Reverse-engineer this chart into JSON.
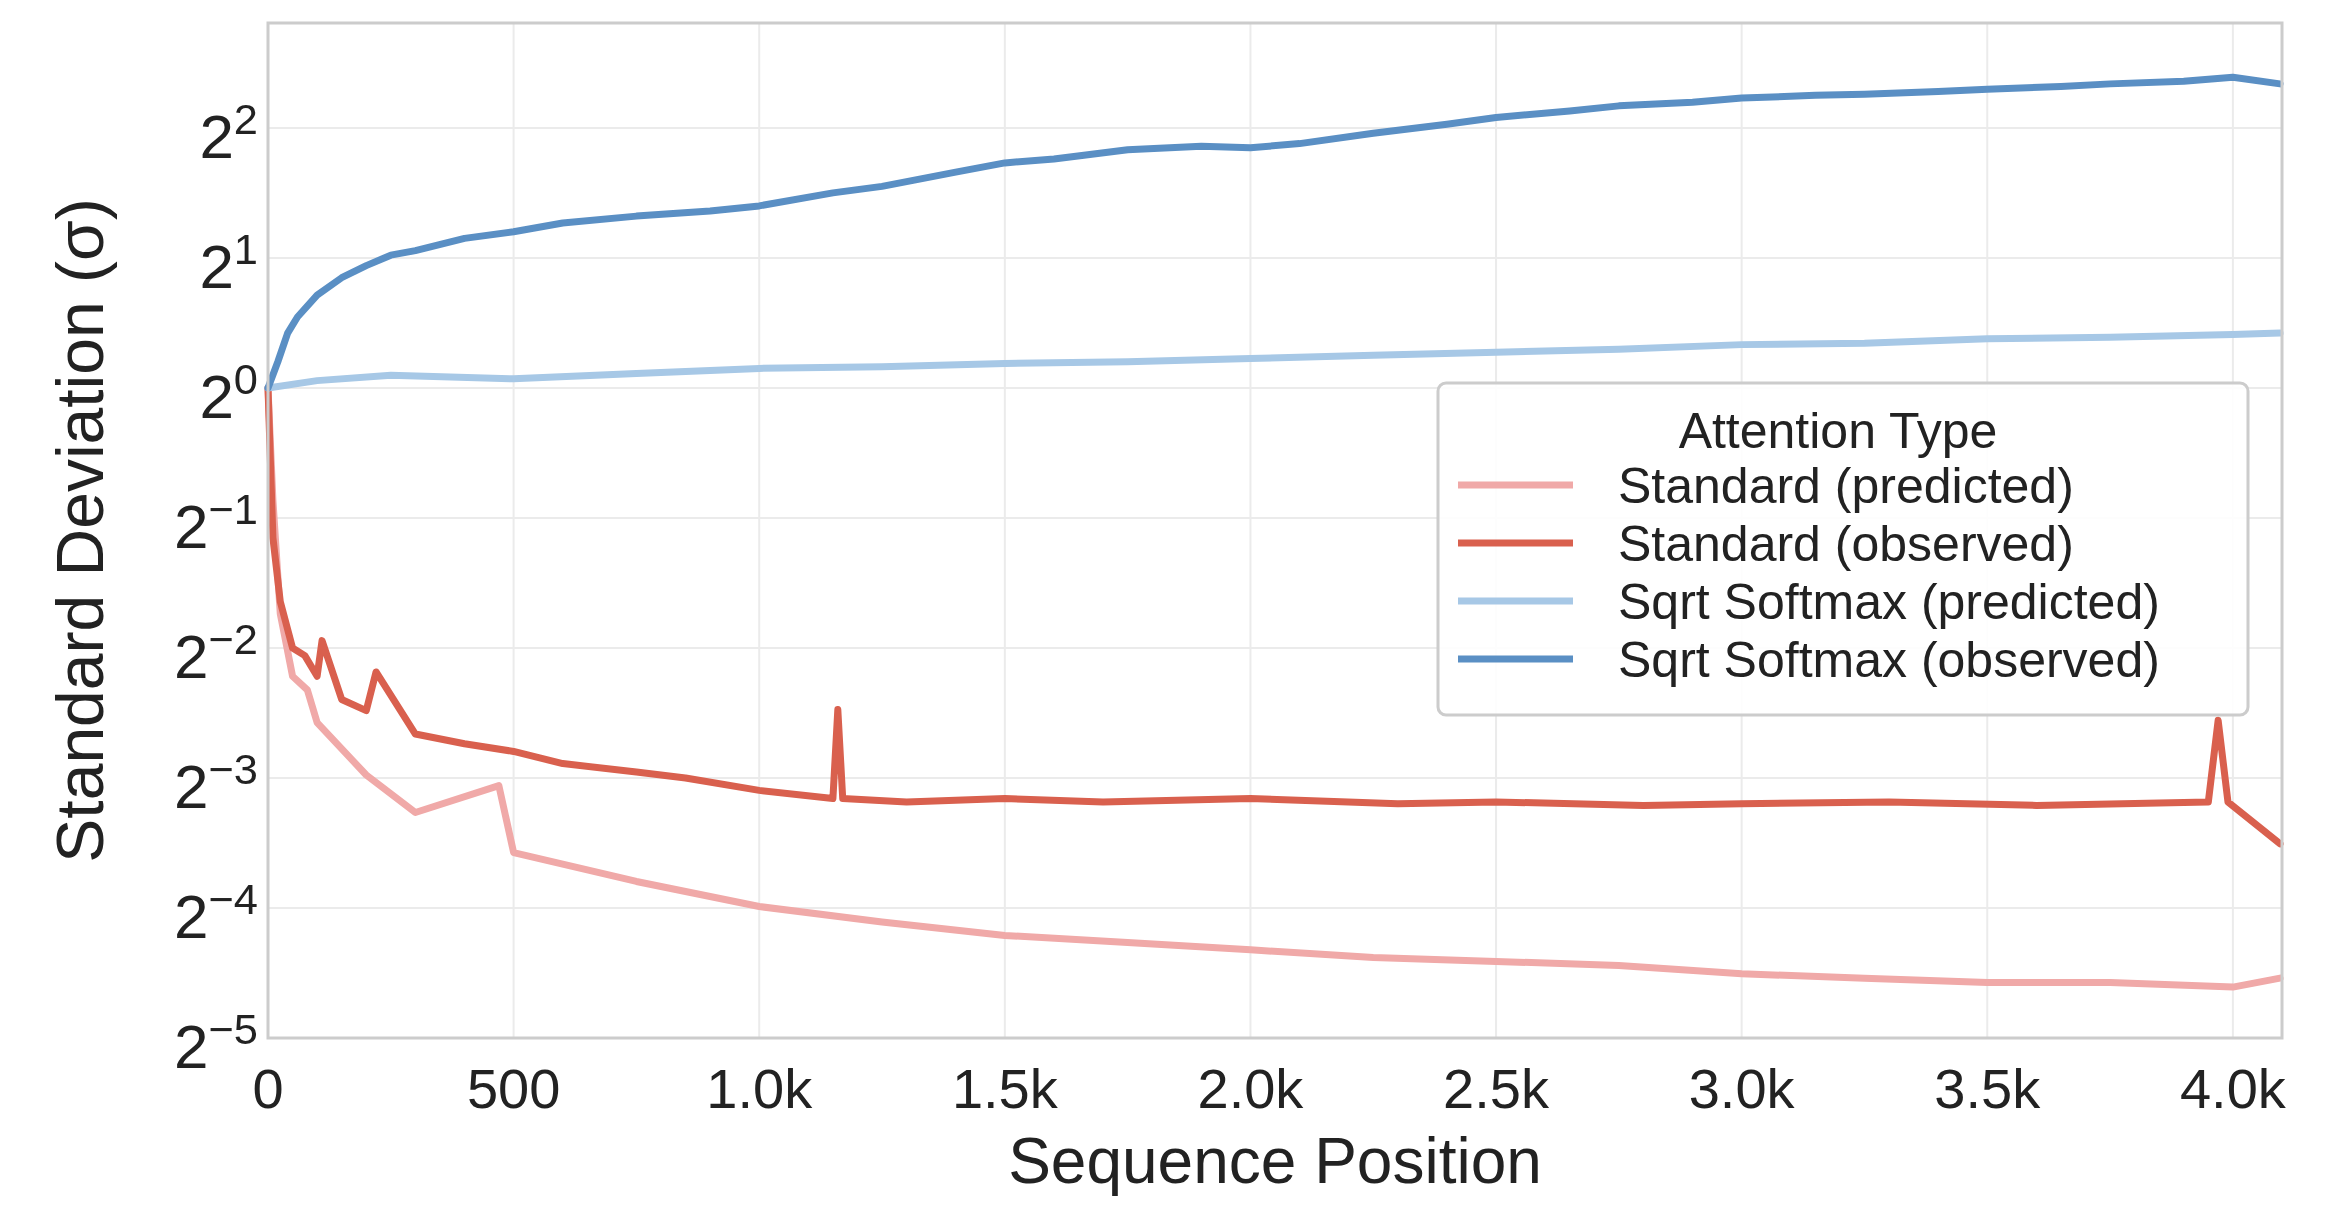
{
  "chart_data": {
    "type": "line",
    "xlabel": "Sequence Position",
    "ylabel": "Standard Deviation (σ)",
    "legend_title": "Attention Type",
    "legend": "right",
    "grid": true,
    "log": "y",
    "line_style": "solid",
    "xlim": [
      0,
      4100
    ],
    "xticks": [
      0,
      500,
      {
        "value": 1000,
        "label": "1.0k"
      },
      {
        "value": 1500,
        "label": "1.5k"
      },
      {
        "value": 2000,
        "label": "2.0k"
      },
      {
        "value": 2500,
        "label": "2.5k"
      },
      {
        "value": 3000,
        "label": "3.0k"
      },
      {
        "value": 3500,
        "label": "3.5k"
      },
      {
        "value": 4000,
        "label": "4.0k"
      }
    ],
    "ylim": [
      0.03125,
      7
    ],
    "yticks": [
      {
        "value": 0.03125,
        "label": "2$^{−5}$"
      },
      {
        "value": 0.0625,
        "label": "2$^{−4}$"
      },
      {
        "value": 0.125,
        "label": "2$^{−3}$"
      },
      {
        "value": 0.25,
        "label": "2$^{−2}$"
      },
      {
        "value": 0.5,
        "label": "2$^{−1}$"
      },
      {
        "value": 1,
        "label": "2$^{0}$"
      },
      {
        "value": 2,
        "label": "2$^{1}$"
      },
      {
        "value": 4,
        "label": "2$^{2}$"
      }
    ],
    "series": [
      {
        "name": "Standard (predicted)",
        "color": "#f0a9a8",
        "x": [
          0,
          10,
          25,
          50,
          80,
          100,
          200,
          300,
          470,
          500,
          750,
          1000,
          1250,
          1500,
          1750,
          2000,
          2250,
          2500,
          2750,
          3000,
          3250,
          3500,
          3750,
          4000,
          4096
        ],
        "values": [
          1.0,
          0.55,
          0.3,
          0.215,
          0.2,
          0.168,
          0.127,
          0.104,
          0.12,
          0.084,
          0.072,
          0.063,
          0.058,
          0.054,
          0.052,
          0.05,
          0.048,
          0.047,
          0.046,
          0.044,
          0.043,
          0.042,
          0.042,
          0.041,
          0.043
        ]
      },
      {
        "name": "Standard (observed)",
        "color": "#d9604e",
        "x": [
          0,
          10,
          25,
          50,
          75,
          100,
          110,
          150,
          200,
          220,
          300,
          400,
          500,
          600,
          750,
          850,
          1000,
          1150,
          1160,
          1170,
          1300,
          1500,
          1700,
          2000,
          2300,
          2500,
          2800,
          3000,
          3300,
          3600,
          3950,
          3970,
          3990,
          4096
        ],
        "values": [
          1.0,
          0.45,
          0.32,
          0.25,
          0.24,
          0.215,
          0.26,
          0.19,
          0.179,
          0.22,
          0.158,
          0.15,
          0.144,
          0.135,
          0.129,
          0.125,
          0.117,
          0.112,
          0.18,
          0.112,
          0.11,
          0.112,
          0.11,
          0.112,
          0.109,
          0.11,
          0.108,
          0.109,
          0.11,
          0.108,
          0.11,
          0.17,
          0.11,
          0.088
        ]
      },
      {
        "name": "Sqrt Softmax (predicted)",
        "color": "#a7c8e6",
        "x": [
          0,
          100,
          250,
          500,
          750,
          1000,
          1250,
          1500,
          1750,
          2000,
          2250,
          2500,
          2750,
          3000,
          3250,
          3500,
          3750,
          4000,
          4096
        ],
        "values": [
          1.0,
          1.04,
          1.07,
          1.05,
          1.08,
          1.11,
          1.12,
          1.14,
          1.15,
          1.17,
          1.19,
          1.21,
          1.23,
          1.26,
          1.27,
          1.3,
          1.31,
          1.33,
          1.34
        ]
      },
      {
        "name": "Sqrt Softmax (observed)",
        "color": "#5a8fc4",
        "x": [
          0,
          20,
          40,
          60,
          100,
          150,
          200,
          250,
          300,
          400,
          500,
          600,
          750,
          900,
          1000,
          1150,
          1250,
          1400,
          1500,
          1600,
          1750,
          1900,
          2000,
          2100,
          2250,
          2400,
          2500,
          2650,
          2750,
          2900,
          3000,
          3150,
          3250,
          3400,
          3500,
          3650,
          3750,
          3900,
          4000,
          4096
        ],
        "values": [
          1.0,
          1.15,
          1.34,
          1.46,
          1.64,
          1.8,
          1.92,
          2.03,
          2.08,
          2.22,
          2.3,
          2.41,
          2.5,
          2.57,
          2.64,
          2.83,
          2.93,
          3.16,
          3.32,
          3.39,
          3.56,
          3.63,
          3.6,
          3.68,
          3.89,
          4.08,
          4.23,
          4.38,
          4.5,
          4.59,
          4.69,
          4.76,
          4.79,
          4.86,
          4.92,
          4.99,
          5.06,
          5.13,
          5.24,
          5.06
        ]
      }
    ]
  }
}
